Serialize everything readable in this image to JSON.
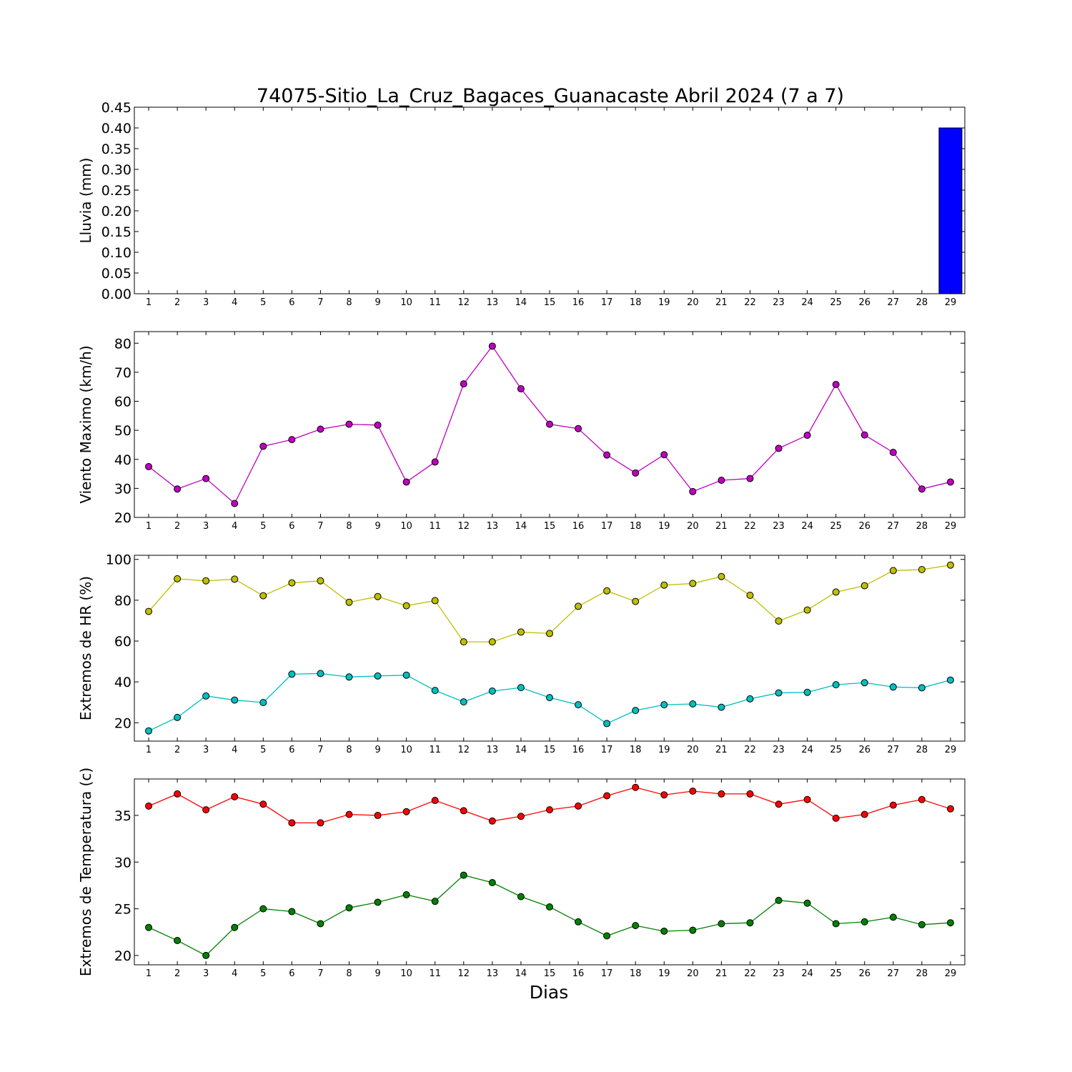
{
  "figure": {
    "title": "74075-Sitio_La_Cruz_Bagaces_Guanacaste Abril 2024  (7 a 7)",
    "xlabel": "Dias"
  },
  "chart_data": [
    {
      "type": "bar",
      "ylabel": "Lluvia (mm)",
      "categories": [
        1,
        2,
        3,
        4,
        5,
        6,
        7,
        8,
        9,
        10,
        11,
        12,
        13,
        14,
        15,
        16,
        17,
        18,
        19,
        20,
        21,
        22,
        23,
        24,
        25,
        26,
        27,
        28,
        29
      ],
      "ylim": [
        0,
        0.45
      ],
      "yticks": [
        "0.00",
        "0.05",
        "0.10",
        "0.15",
        "0.20",
        "0.25",
        "0.30",
        "0.35",
        "0.40",
        "0.45"
      ],
      "series": [
        {
          "color": "#0000ff",
          "values": [
            0,
            0,
            0,
            0,
            0,
            0,
            0,
            0,
            0,
            0,
            0,
            0,
            0,
            0,
            0,
            0,
            0,
            0,
            0,
            0,
            0,
            0,
            0,
            0,
            0,
            0,
            0,
            0,
            0.4
          ]
        }
      ]
    },
    {
      "type": "line",
      "ylabel": "Viento Maximo (km/h)",
      "x": [
        1,
        2,
        3,
        4,
        5,
        6,
        7,
        8,
        9,
        10,
        11,
        12,
        13,
        14,
        15,
        16,
        17,
        18,
        19,
        20,
        21,
        22,
        23,
        24,
        25,
        26,
        27,
        28,
        29
      ],
      "ylim": [
        20,
        84
      ],
      "yticks": [
        "20",
        "30",
        "40",
        "50",
        "60",
        "70",
        "80"
      ],
      "series": [
        {
          "color": "#bf00bf",
          "values": [
            37.5,
            29.8,
            33.4,
            24.8,
            44.5,
            46.8,
            50.4,
            52.1,
            51.8,
            32.2,
            39.1,
            66.0,
            79.0,
            64.3,
            52.1,
            50.6,
            41.5,
            35.3,
            41.6,
            28.9,
            32.8,
            33.4,
            43.8,
            48.3,
            65.8,
            48.4,
            42.4,
            29.8,
            32.2
          ]
        }
      ]
    },
    {
      "type": "line",
      "ylabel": "Extremos de HR (%)",
      "x": [
        1,
        2,
        3,
        4,
        5,
        6,
        7,
        8,
        9,
        10,
        11,
        12,
        13,
        14,
        15,
        16,
        17,
        18,
        19,
        20,
        21,
        22,
        23,
        24,
        25,
        26,
        27,
        28,
        29
      ],
      "ylim": [
        11,
        102
      ],
      "yticks": [
        "20",
        "40",
        "60",
        "80",
        "100"
      ],
      "series": [
        {
          "color": "#bfbf00",
          "values": [
            74.5,
            90.5,
            89.5,
            90.3,
            82.2,
            88.5,
            89.5,
            79.0,
            81.8,
            77.3,
            79.8,
            59.6,
            59.6,
            64.4,
            63.7,
            77.0,
            84.6,
            79.4,
            87.4,
            88.2,
            91.6,
            82.4,
            69.8,
            75.2,
            84.0,
            87.1,
            94.5,
            95.0,
            97.2
          ]
        },
        {
          "color": "#00bfbf",
          "values": [
            16.0,
            22.6,
            33.1,
            31.1,
            29.9,
            43.8,
            44.1,
            42.4,
            42.9,
            43.3,
            35.8,
            30.2,
            35.5,
            37.2,
            32.3,
            28.8,
            19.6,
            26.0,
            28.8,
            29.2,
            27.6,
            31.7,
            34.6,
            34.9,
            38.6,
            39.6,
            37.5,
            37.1,
            40.9
          ]
        }
      ]
    },
    {
      "type": "line",
      "ylabel": "Extremos de Temperatura (c)",
      "x": [
        1,
        2,
        3,
        4,
        5,
        6,
        7,
        8,
        9,
        10,
        11,
        12,
        13,
        14,
        15,
        16,
        17,
        18,
        19,
        20,
        21,
        22,
        23,
        24,
        25,
        26,
        27,
        28,
        29
      ],
      "ylim": [
        19,
        38.9
      ],
      "yticks": [
        "20",
        "25",
        "30",
        "35"
      ],
      "series": [
        {
          "color": "#ff0000",
          "values": [
            36.0,
            37.3,
            35.6,
            37.0,
            36.2,
            34.2,
            34.2,
            35.1,
            35.0,
            35.4,
            36.6,
            35.5,
            34.4,
            34.9,
            35.6,
            36.0,
            37.1,
            38.0,
            37.2,
            37.6,
            37.3,
            37.3,
            36.2,
            36.7,
            34.7,
            35.1,
            36.1,
            36.7,
            35.7
          ]
        },
        {
          "color": "#008000",
          "values": [
            23.0,
            21.6,
            20.0,
            23.0,
            25.0,
            24.7,
            23.4,
            25.1,
            25.7,
            26.5,
            25.8,
            28.6,
            27.8,
            26.3,
            25.2,
            23.6,
            22.1,
            23.2,
            22.6,
            22.7,
            23.4,
            23.5,
            25.9,
            25.6,
            23.4,
            23.6,
            24.1,
            23.3,
            23.5
          ]
        }
      ]
    }
  ]
}
